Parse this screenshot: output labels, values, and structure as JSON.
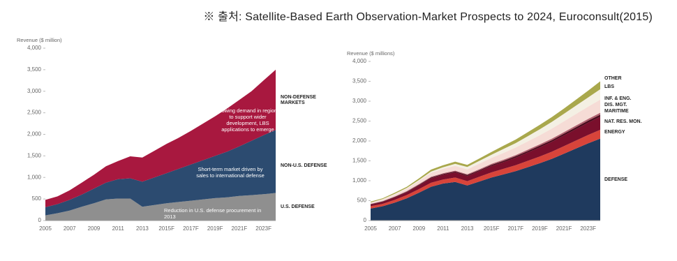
{
  "source": "※ 출처: Satellite-Based Earth Observation-Market Prospects to 2024, Euroconsult(2015)",
  "chart_data": [
    {
      "type": "stacked_area",
      "ylabel": "Revenue ($ million)",
      "categories": [
        "2005",
        null,
        "2007",
        null,
        "2009",
        null,
        "2011",
        null,
        "2013",
        null,
        "2015F",
        null,
        "2017F",
        null,
        "2019F",
        null,
        "2021F",
        null,
        "2023F",
        null
      ],
      "ylim": [
        0,
        4000
      ],
      "yticks": [
        0,
        500,
        {
          "value": 1000,
          "label": "1,000"
        },
        {
          "value": 1500,
          "label": "1,500"
        },
        {
          "value": 2000,
          "label": "2,000"
        },
        {
          "value": 2500,
          "label": "2,500"
        },
        {
          "value": 3000,
          "label": "3,000"
        },
        {
          "value": 3500,
          "label": "3,500"
        },
        {
          "value": 4000,
          "label": "4,000"
        }
      ],
      "series": [
        {
          "name": "U.S. DEFENSE",
          "color": "#8f8f8f",
          "values": [
            120,
            170,
            230,
            320,
            400,
            490,
            510,
            510,
            320,
            360,
            400,
            430,
            460,
            490,
            520,
            540,
            570,
            590,
            610,
            640
          ]
        },
        {
          "name": "NON-U.S. DEFENSE",
          "color": "#2c4b70",
          "values": [
            190,
            210,
            250,
            280,
            340,
            390,
            450,
            470,
            580,
            640,
            700,
            770,
            840,
            910,
            980,
            1060,
            1150,
            1260,
            1370,
            1460
          ]
        },
        {
          "name": "NON-DEFENSE MARKETS",
          "color": "#a8183f",
          "values": [
            170,
            180,
            220,
            280,
            320,
            380,
            420,
            510,
            560,
            620,
            680,
            720,
            780,
            850,
            920,
            1000,
            1080,
            1150,
            1270,
            1400
          ]
        }
      ],
      "annotations": [
        "Growing demand in regions to support wider development, LBS applications to emerge",
        "Short-term market driven by sales to international defense",
        "Reduction in U.S. defense procurement in 2013"
      ]
    },
    {
      "type": "stacked_area",
      "ylabel": "Revenue ($ millions)",
      "categories": [
        "2005",
        null,
        "2007",
        null,
        "2009",
        null,
        "2011",
        null,
        "2013",
        null,
        "2015F",
        null,
        "2017F",
        null,
        "2019F",
        null,
        "2021F",
        null,
        "2023F",
        null
      ],
      "ylim": [
        0,
        4000
      ],
      "yticks": [
        0,
        500,
        {
          "value": 1000,
          "label": "1,000"
        },
        {
          "value": 1500,
          "label": "1,500"
        },
        {
          "value": 2000,
          "label": "2,000"
        },
        {
          "value": 2500,
          "label": "2,500"
        },
        {
          "value": 3000,
          "label": "3,000"
        },
        {
          "value": 3500,
          "label": "3,500"
        },
        {
          "value": 4000,
          "label": "4,000"
        }
      ],
      "series": [
        {
          "name": "DEFENSE",
          "color": "#1f3a5e",
          "values": [
            300,
            360,
            450,
            560,
            700,
            850,
            930,
            970,
            880,
            980,
            1080,
            1160,
            1240,
            1340,
            1440,
            1550,
            1680,
            1810,
            1940,
            2060
          ]
        },
        {
          "name": "ENERGY",
          "color": "#d8443a",
          "values": [
            60,
            60,
            70,
            80,
            90,
            100,
            100,
            110,
            110,
            120,
            130,
            140,
            150,
            160,
            170,
            180,
            190,
            200,
            210,
            220
          ]
        },
        {
          "name": "NAT. RES. MON.",
          "color": "#7a0f2c",
          "values": [
            40,
            50,
            60,
            70,
            90,
            110,
            120,
            130,
            130,
            140,
            160,
            170,
            190,
            210,
            230,
            250,
            270,
            290,
            310,
            330
          ]
        },
        {
          "name": "MARITIME",
          "color": "#4a0a1c",
          "values": [
            10,
            10,
            15,
            15,
            20,
            20,
            20,
            25,
            25,
            25,
            30,
            30,
            35,
            35,
            40,
            40,
            45,
            45,
            50,
            50
          ]
        },
        {
          "name": "DIS. MGT.",
          "color": "#b06270",
          "values": [
            10,
            10,
            10,
            15,
            15,
            20,
            20,
            20,
            20,
            25,
            25,
            30,
            30,
            35,
            35,
            40,
            40,
            45,
            45,
            50
          ]
        },
        {
          "name": "INF. & ENG.",
          "color": "#f6dcd6",
          "values": [
            30,
            40,
            50,
            60,
            80,
            100,
            110,
            120,
            120,
            140,
            150,
            170,
            190,
            210,
            230,
            250,
            270,
            290,
            310,
            330
          ]
        },
        {
          "name": "LBS",
          "color": "#f4f0e4",
          "values": [
            5,
            10,
            15,
            20,
            25,
            30,
            40,
            50,
            60,
            70,
            80,
            100,
            110,
            130,
            150,
            170,
            190,
            210,
            230,
            260
          ]
        },
        {
          "name": "OTHER",
          "color": "#a9a84c",
          "values": [
            20,
            20,
            30,
            30,
            40,
            50,
            50,
            55,
            55,
            60,
            70,
            80,
            90,
            100,
            110,
            120,
            130,
            150,
            170,
            200
          ]
        }
      ]
    }
  ]
}
